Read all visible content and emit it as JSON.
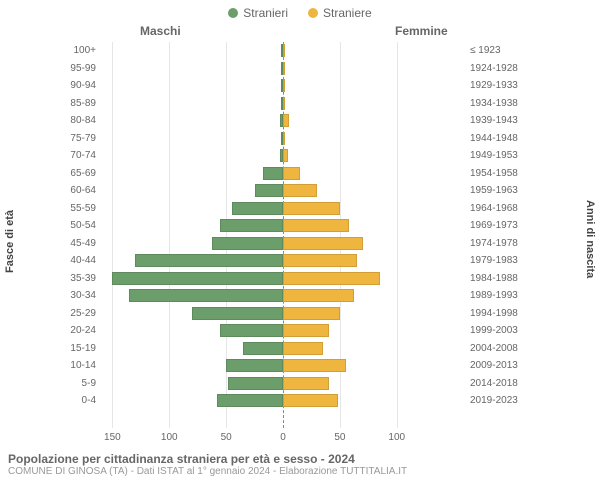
{
  "chart": {
    "type": "population-pyramid",
    "legend": {
      "male": {
        "label": "Stranieri",
        "color": "#6b9e6b"
      },
      "female": {
        "label": "Straniere",
        "color": "#eeb63e"
      }
    },
    "col_headers": {
      "left": "Maschi",
      "right": "Femmine"
    },
    "y_axis_left_title": "Fasce di età",
    "y_axis_right_title": "Anni di nascita",
    "max_value": 160,
    "x_ticks_left": [
      150,
      100,
      50,
      0
    ],
    "x_ticks_right": [
      0,
      50,
      100
    ],
    "grid_step": 50,
    "background_color": "#ffffff",
    "grid_color": "#e6e6e6",
    "center_line_color": "#888888",
    "label_fontsize": 10,
    "label_color": "#666666",
    "rows": [
      {
        "age": "100+",
        "year": "≤ 1923",
        "m": 0,
        "f": 0
      },
      {
        "age": "95-99",
        "year": "1924-1928",
        "m": 0,
        "f": 0
      },
      {
        "age": "90-94",
        "year": "1929-1933",
        "m": 0,
        "f": 0
      },
      {
        "age": "85-89",
        "year": "1934-1938",
        "m": 0,
        "f": 0
      },
      {
        "age": "80-84",
        "year": "1939-1943",
        "m": 3,
        "f": 5
      },
      {
        "age": "75-79",
        "year": "1944-1948",
        "m": 1,
        "f": 2
      },
      {
        "age": "70-74",
        "year": "1949-1953",
        "m": 3,
        "f": 4
      },
      {
        "age": "65-69",
        "year": "1954-1958",
        "m": 18,
        "f": 15
      },
      {
        "age": "60-64",
        "year": "1959-1963",
        "m": 25,
        "f": 30
      },
      {
        "age": "55-59",
        "year": "1964-1968",
        "m": 45,
        "f": 50
      },
      {
        "age": "50-54",
        "year": "1969-1973",
        "m": 55,
        "f": 58
      },
      {
        "age": "45-49",
        "year": "1974-1978",
        "m": 62,
        "f": 70
      },
      {
        "age": "40-44",
        "year": "1979-1983",
        "m": 130,
        "f": 65
      },
      {
        "age": "35-39",
        "year": "1984-1988",
        "m": 150,
        "f": 85
      },
      {
        "age": "30-34",
        "year": "1989-1993",
        "m": 135,
        "f": 62
      },
      {
        "age": "25-29",
        "year": "1994-1998",
        "m": 80,
        "f": 50
      },
      {
        "age": "20-24",
        "year": "1999-2003",
        "m": 55,
        "f": 40
      },
      {
        "age": "15-19",
        "year": "2004-2008",
        "m": 35,
        "f": 35
      },
      {
        "age": "10-14",
        "year": "2009-2013",
        "m": 50,
        "f": 55
      },
      {
        "age": "5-9",
        "year": "2014-2018",
        "m": 48,
        "f": 40
      },
      {
        "age": "0-4",
        "year": "2019-2023",
        "m": 58,
        "f": 48
      }
    ]
  },
  "footer": {
    "title": "Popolazione per cittadinanza straniera per età e sesso - 2024",
    "subtitle": "COMUNE DI GINOSA (TA) - Dati ISTAT al 1° gennaio 2024 - Elaborazione TUTTITALIA.IT"
  }
}
